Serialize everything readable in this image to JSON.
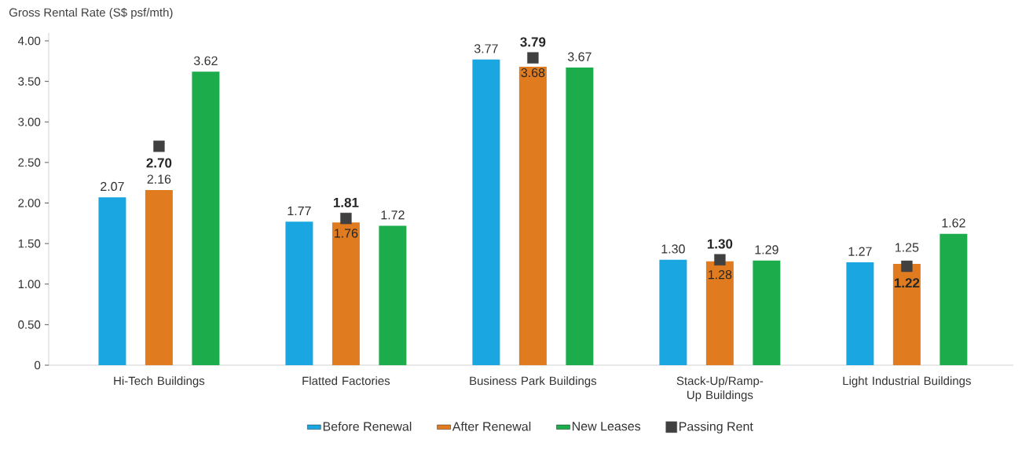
{
  "chart_data": {
    "type": "bar",
    "ylabel": "Gross Rental Rate (S$ psf/mth)",
    "categories": [
      "Hi-Tech Buildings",
      "Flatted Factories",
      "Business Park Buildings",
      "Stack-Up/Ramp-Up Buildings",
      "Light Industrial Buildings"
    ],
    "series": [
      {
        "name": "Before Renewal",
        "color": "#1aa7e1",
        "values": [
          2.07,
          1.77,
          3.77,
          1.3,
          1.27
        ],
        "value_labels": [
          "2.07",
          "1.77",
          "3.77",
          "1.30",
          "1.27"
        ]
      },
      {
        "name": "After Renewal",
        "color": "#e07c1f",
        "values": [
          2.16,
          1.76,
          3.68,
          1.28,
          1.25
        ],
        "value_labels": [
          "2.16",
          "1.76",
          "3.68",
          "1.28",
          "1.25"
        ]
      },
      {
        "name": "New Leases",
        "color": "#1dac4b",
        "values": [
          3.62,
          1.72,
          3.67,
          1.29,
          1.62
        ],
        "value_labels": [
          "3.62",
          "1.72",
          "3.67",
          "1.29",
          "1.62"
        ]
      },
      {
        "name": "Passing Rent",
        "type": "scatter",
        "marker": "square",
        "color": "#404040",
        "x": [
          "Hi-Tech Buildings",
          "Flatted Factories",
          "Business Park Buildings",
          "Stack-Up/Ramp-Up Buildings",
          "Light Industrial Buildings"
        ],
        "values": [
          2.7,
          1.81,
          3.79,
          1.3,
          1.22
        ],
        "value_labels": [
          "2.70",
          "1.81",
          "3.79",
          "1.30",
          "1.22"
        ]
      }
    ],
    "ylim": [
      0,
      4.1
    ],
    "yticks": [
      {
        "value": 0,
        "label": "0"
      },
      {
        "value": 0.5,
        "label": "0.50"
      },
      {
        "value": 1,
        "label": "1.00"
      },
      {
        "value": 1.5,
        "label": "1.50"
      },
      {
        "value": 2,
        "label": "2.00"
      },
      {
        "value": 2.5,
        "label": "2.50"
      },
      {
        "value": 3,
        "label": "3.00"
      },
      {
        "value": 3.5,
        "label": "3.50"
      },
      {
        "value": 4,
        "label": "4.00"
      }
    ],
    "grid": false,
    "legend": "bottom"
  }
}
